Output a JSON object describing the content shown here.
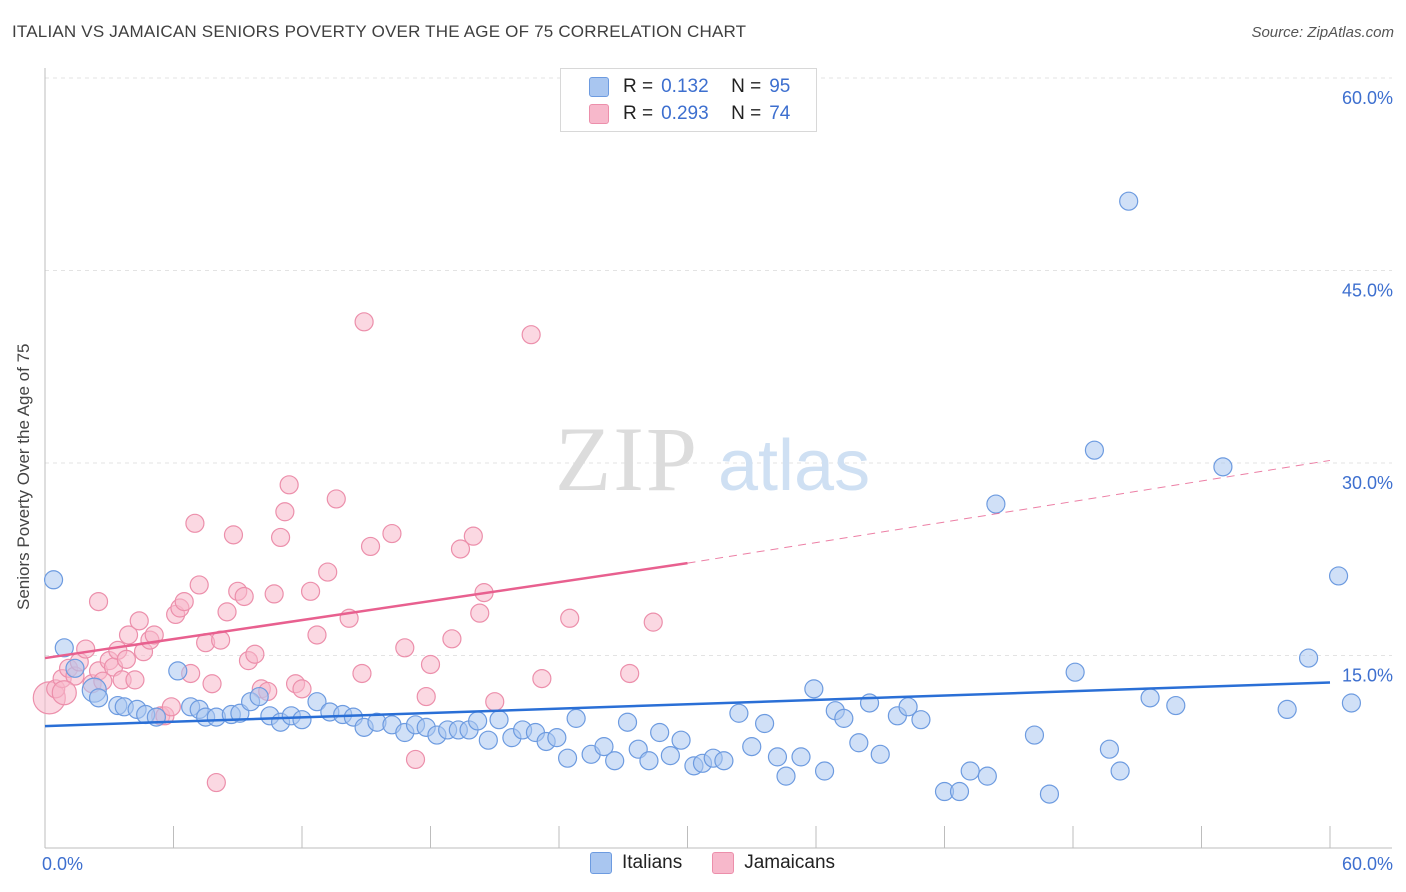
{
  "header": {
    "title": "ITALIAN VS JAMAICAN SENIORS POVERTY OVER THE AGE OF 75 CORRELATION CHART",
    "source": "Source: ZipAtlas.com"
  },
  "watermark": {
    "zip": "ZIP",
    "atlas": "atlas"
  },
  "legend_top": {
    "rows": [
      {
        "r_label": "R =",
        "r_value": "0.132",
        "n_label": "N =",
        "n_value": "95",
        "color": "#a9c6f0",
        "border": "#6d9be0"
      },
      {
        "r_label": "R =",
        "r_value": "0.293",
        "n_label": "N =",
        "n_value": "74",
        "color": "#f7b8cb",
        "border": "#ec8fab"
      }
    ]
  },
  "legend_bottom": {
    "items": [
      "Italians",
      "Jamaicans"
    ]
  },
  "colors": {
    "italians_fill": "#a9c6f0",
    "italians_stroke": "#6d9be0",
    "italians_line": "#2a6fd6",
    "jamaicans_fill": "#f7b8cb",
    "jamaicans_stroke": "#ec8fab",
    "jamaicans_line": "#e8608f",
    "tick_label": "#3d6fcf",
    "grid": "#e3e3e3"
  },
  "chart_data": {
    "type": "scatter",
    "ylabel": "Seniors Poverty Over the Age of 75",
    "xlim": [
      0,
      60
    ],
    "ylim": [
      0,
      60
    ],
    "x_tick_labels": [
      "0.0%",
      "60.0%"
    ],
    "y_ticks": [
      15,
      30,
      45,
      60
    ],
    "y_tick_labels": [
      "15.0%",
      "30.0%",
      "45.0%",
      "60.0%"
    ],
    "grid": "horizontal-dashed",
    "legend": "top-center",
    "series": [
      {
        "name": "Italians",
        "trend": {
          "x": [
            0,
            60
          ],
          "y": [
            9.5,
            12.9
          ]
        },
        "points": [
          [
            0.4,
            20.9,
            2
          ],
          [
            0.9,
            15.6,
            2
          ],
          [
            1.4,
            14.0,
            2
          ],
          [
            2.3,
            12.3,
            3
          ],
          [
            2.5,
            11.7,
            2
          ],
          [
            3.4,
            11.1,
            2
          ],
          [
            3.7,
            11.0,
            2
          ],
          [
            4.3,
            10.8,
            2
          ],
          [
            4.7,
            10.4,
            2
          ],
          [
            5.2,
            10.2,
            2
          ],
          [
            6.2,
            13.8,
            2
          ],
          [
            6.8,
            11.0,
            2
          ],
          [
            7.2,
            10.8,
            2
          ],
          [
            7.5,
            10.2,
            2
          ],
          [
            8.0,
            10.2,
            2
          ],
          [
            8.7,
            10.4,
            2
          ],
          [
            9.1,
            10.5,
            2
          ],
          [
            9.6,
            11.4,
            2
          ],
          [
            10.0,
            11.8,
            2
          ],
          [
            10.5,
            10.3,
            2
          ],
          [
            11.0,
            9.8,
            2
          ],
          [
            11.5,
            10.3,
            2
          ],
          [
            12.0,
            10.0,
            2
          ],
          [
            12.7,
            11.4,
            2
          ],
          [
            13.3,
            10.6,
            2
          ],
          [
            13.9,
            10.4,
            2
          ],
          [
            14.4,
            10.2,
            2
          ],
          [
            14.9,
            9.4,
            2
          ],
          [
            15.5,
            9.8,
            2
          ],
          [
            16.2,
            9.6,
            2
          ],
          [
            16.8,
            9.0,
            2
          ],
          [
            17.3,
            9.6,
            2
          ],
          [
            17.8,
            9.4,
            2
          ],
          [
            18.3,
            8.8,
            2
          ],
          [
            18.8,
            9.2,
            2
          ],
          [
            19.3,
            9.2,
            2
          ],
          [
            19.8,
            9.2,
            2
          ],
          [
            20.2,
            9.9,
            2
          ],
          [
            20.7,
            8.4,
            2
          ],
          [
            21.2,
            10.0,
            2
          ],
          [
            21.8,
            8.6,
            2
          ],
          [
            22.3,
            9.2,
            2
          ],
          [
            22.9,
            9.0,
            2
          ],
          [
            23.4,
            8.3,
            2
          ],
          [
            23.9,
            8.6,
            2
          ],
          [
            24.4,
            7.0,
            2
          ],
          [
            24.8,
            10.1,
            2
          ],
          [
            25.5,
            7.3,
            2
          ],
          [
            26.1,
            7.9,
            2
          ],
          [
            26.6,
            6.8,
            2
          ],
          [
            27.2,
            9.8,
            2
          ],
          [
            27.7,
            7.7,
            2
          ],
          [
            28.2,
            6.8,
            2
          ],
          [
            28.7,
            9.0,
            2
          ],
          [
            29.2,
            7.2,
            2
          ],
          [
            29.7,
            8.4,
            2
          ],
          [
            30.3,
            6.4,
            2
          ],
          [
            30.7,
            6.6,
            2
          ],
          [
            31.2,
            7.0,
            2
          ],
          [
            31.7,
            6.8,
            2
          ],
          [
            32.4,
            10.5,
            2
          ],
          [
            33.0,
            7.9,
            2
          ],
          [
            33.6,
            9.7,
            2
          ],
          [
            34.2,
            7.1,
            2
          ],
          [
            34.6,
            5.6,
            2
          ],
          [
            35.3,
            7.1,
            2
          ],
          [
            35.9,
            12.4,
            2
          ],
          [
            36.4,
            6.0,
            2
          ],
          [
            36.9,
            10.7,
            2
          ],
          [
            37.3,
            10.1,
            2
          ],
          [
            38.0,
            8.2,
            2
          ],
          [
            38.5,
            11.3,
            2
          ],
          [
            39.0,
            7.3,
            2
          ],
          [
            39.8,
            10.3,
            2
          ],
          [
            40.3,
            11.0,
            2
          ],
          [
            40.9,
            10.0,
            2
          ],
          [
            42.0,
            4.4,
            2
          ],
          [
            42.7,
            4.4,
            2
          ],
          [
            43.2,
            6.0,
            2
          ],
          [
            44.0,
            5.6,
            2
          ],
          [
            44.4,
            26.8,
            2
          ],
          [
            46.2,
            8.8,
            2
          ],
          [
            46.9,
            4.2,
            2
          ],
          [
            48.1,
            13.7,
            2
          ],
          [
            49.0,
            31.0,
            2
          ],
          [
            49.7,
            7.7,
            2
          ],
          [
            50.2,
            6.0,
            2
          ],
          [
            50.6,
            50.4,
            2
          ],
          [
            51.6,
            11.7,
            2
          ],
          [
            52.8,
            11.1,
            2
          ],
          [
            55.0,
            29.7,
            2
          ],
          [
            58.0,
            10.8,
            2
          ],
          [
            59.0,
            14.8,
            2
          ],
          [
            60.4,
            21.2,
            2
          ],
          [
            61.0,
            11.3,
            2
          ]
        ]
      },
      {
        "name": "Jamaicans",
        "trend": {
          "x": [
            0,
            30
          ],
          "y": [
            14.8,
            22.2
          ]
        },
        "trend_extension": {
          "x": [
            30,
            60
          ],
          "y": [
            22.2,
            30.2
          ]
        },
        "points": [
          [
            0.2,
            11.7,
            4
          ],
          [
            0.5,
            12.4,
            2
          ],
          [
            0.8,
            13.2,
            2
          ],
          [
            1.1,
            14.0,
            2
          ],
          [
            1.4,
            13.4,
            2
          ],
          [
            1.6,
            14.5,
            2
          ],
          [
            1.9,
            15.5,
            2
          ],
          [
            2.2,
            12.8,
            2
          ],
          [
            2.5,
            13.8,
            2
          ],
          [
            2.5,
            19.2,
            2
          ],
          [
            2.7,
            13.0,
            2
          ],
          [
            3.0,
            14.6,
            2
          ],
          [
            3.2,
            14.1,
            2
          ],
          [
            3.4,
            15.4,
            2
          ],
          [
            3.6,
            13.1,
            2
          ],
          [
            3.8,
            14.7,
            2
          ],
          [
            3.9,
            16.6,
            2
          ],
          [
            4.2,
            13.1,
            2
          ],
          [
            4.4,
            17.7,
            2
          ],
          [
            4.6,
            15.3,
            2
          ],
          [
            4.9,
            16.2,
            2
          ],
          [
            5.1,
            16.6,
            2
          ],
          [
            5.4,
            10.3,
            2
          ],
          [
            5.6,
            10.3,
            2
          ],
          [
            5.9,
            11.0,
            2
          ],
          [
            6.1,
            18.2,
            2
          ],
          [
            6.3,
            18.7,
            2
          ],
          [
            6.5,
            19.2,
            2
          ],
          [
            6.8,
            13.6,
            2
          ],
          [
            7.0,
            25.3,
            2
          ],
          [
            7.2,
            20.5,
            2
          ],
          [
            7.5,
            16.0,
            2
          ],
          [
            7.8,
            12.8,
            2
          ],
          [
            8.0,
            5.1,
            2
          ],
          [
            8.2,
            16.2,
            2
          ],
          [
            8.5,
            18.4,
            2
          ],
          [
            8.8,
            24.4,
            2
          ],
          [
            9.0,
            20.0,
            2
          ],
          [
            9.3,
            19.6,
            2
          ],
          [
            9.5,
            14.6,
            2
          ],
          [
            9.8,
            15.1,
            2
          ],
          [
            10.1,
            12.4,
            2
          ],
          [
            10.4,
            12.2,
            2
          ],
          [
            10.7,
            19.8,
            2
          ],
          [
            11.0,
            24.2,
            2
          ],
          [
            11.2,
            26.2,
            2
          ],
          [
            11.4,
            28.3,
            2
          ],
          [
            11.7,
            12.8,
            2
          ],
          [
            12.0,
            12.4,
            2
          ],
          [
            12.4,
            20.0,
            2
          ],
          [
            12.7,
            16.6,
            2
          ],
          [
            13.2,
            21.5,
            2
          ],
          [
            13.6,
            27.2,
            2
          ],
          [
            14.2,
            17.9,
            2
          ],
          [
            14.8,
            13.6,
            2
          ],
          [
            14.9,
            41.0,
            2
          ],
          [
            15.2,
            23.5,
            2
          ],
          [
            16.2,
            24.5,
            2
          ],
          [
            16.8,
            15.6,
            2
          ],
          [
            17.3,
            6.9,
            2
          ],
          [
            17.8,
            11.8,
            2
          ],
          [
            18.0,
            14.3,
            2
          ],
          [
            19.0,
            16.3,
            2
          ],
          [
            19.4,
            23.3,
            2
          ],
          [
            20.0,
            24.3,
            2
          ],
          [
            20.3,
            18.3,
            2
          ],
          [
            20.5,
            19.9,
            2
          ],
          [
            21.0,
            11.4,
            2
          ],
          [
            22.7,
            40.0,
            2
          ],
          [
            23.2,
            13.2,
            2
          ],
          [
            24.5,
            17.9,
            2
          ],
          [
            27.3,
            13.6,
            2
          ],
          [
            28.4,
            17.6,
            2
          ],
          [
            0.9,
            12.1,
            3
          ]
        ]
      }
    ]
  }
}
